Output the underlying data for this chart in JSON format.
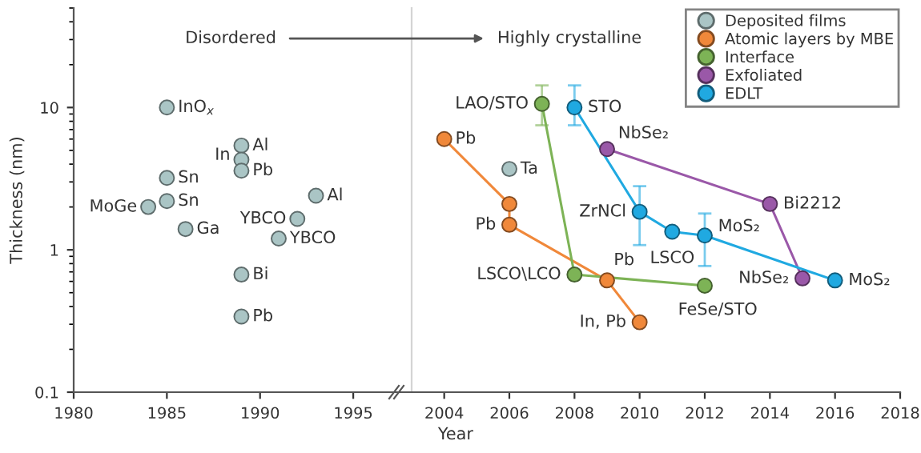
{
  "chart_data": [
    {
      "type": "scatter",
      "ylabel": "Thickness (nm)",
      "log": "y",
      "xlim": [
        1980,
        1996.5
      ],
      "xticks": [
        1980,
        1985,
        1990,
        1995
      ],
      "ylim": [
        0.1,
        50
      ],
      "yticks": [
        0.1,
        1,
        10
      ],
      "marker": "circle",
      "grid": false,
      "legend": false,
      "annotations": [
        {
          "text": "InO$_{x}$",
          "x": 1985,
          "y": 10
        },
        {
          "text": "Al",
          "x": 1989,
          "y": 5.4
        },
        {
          "text": "In",
          "x": 1989,
          "y": 4.3
        },
        {
          "text": "Pb",
          "x": 1989,
          "y": 3.6
        },
        {
          "text": "Sn",
          "x": 1985,
          "y": 3.2
        },
        {
          "text": "Sn",
          "x": 1985,
          "y": 2.2
        },
        {
          "text": "MoGe",
          "x": 1984,
          "y": 2.0
        },
        {
          "text": "Ga",
          "x": 1986,
          "y": 1.4
        },
        {
          "text": "Al",
          "x": 1993,
          "y": 2.4
        },
        {
          "text": "YBCO",
          "x": 1992,
          "y": 1.65
        },
        {
          "text": "YBCO",
          "x": 1991,
          "y": 1.2
        },
        {
          "text": "Bi",
          "x": 1989,
          "y": 0.67
        },
        {
          "text": "Pb",
          "x": 1989,
          "y": 0.34
        },
        "Disordered"
      ],
      "series": [
        {
          "color": "#aac5c5",
          "x": [
            1985,
            1989,
            1989,
            1989,
            1985,
            1985,
            1984,
            1986,
            1993,
            1992,
            1991,
            1989,
            1989
          ],
          "values": [
            10,
            5.4,
            4.3,
            3.6,
            3.2,
            2.2,
            2.0,
            1.4,
            2.4,
            1.65,
            1.2,
            0.67,
            0.34
          ]
        }
      ]
    },
    {
      "type": "scatter",
      "xlabel": "Year",
      "log": "y",
      "xlim": [
        2003,
        2018
      ],
      "xticks": [
        2004,
        2006,
        2008,
        2010,
        2012,
        2014,
        2016,
        2018
      ],
      "ylim": [
        0.1,
        50
      ],
      "yticks": [
        0.1,
        1,
        10
      ],
      "tick_labels": "x",
      "marker": "circle",
      "grid": false,
      "legend": "top right",
      "annotations": [
        {
          "text": "Ta",
          "x": 2006,
          "y": 3.7
        },
        {
          "text": "LAO/STO",
          "x": 2007,
          "y": 10.6
        },
        {
          "text": "STO",
          "x": 2008,
          "y": 10
        },
        {
          "text": "Pb",
          "x": 2004,
          "y": 6.0
        },
        {
          "text": "Pb",
          "x": 2006,
          "y": 1.5
        },
        {
          "text": "LSCO\\LCO",
          "x": 2008,
          "y": 0.67
        },
        {
          "text": "Pb",
          "x": 2009,
          "y": 0.61
        },
        {
          "text": "In, Pb",
          "x": 2010,
          "y": 0.31
        },
        {
          "text": "FeSe/STO",
          "x": 2012,
          "y": 0.56
        },
        {
          "text": "NbSe₂",
          "x": 2009,
          "y": 5.1
        },
        {
          "text": "ZrNCl",
          "x": 2010,
          "y": 1.85
        },
        {
          "text": "LSCO",
          "x": 2011,
          "y": 1.34
        },
        {
          "text": "MoS₂",
          "x": 2012,
          "y": 1.26
        },
        {
          "text": "Bi2212",
          "x": 2014,
          "y": 2.1
        },
        {
          "text": "NbSe₂",
          "x": 2015,
          "y": 0.63
        },
        {
          "text": "MoS₂",
          "x": 2016,
          "y": 0.61
        },
        "Highly crystalline"
      ],
      "series": [
        {
          "name": "Deposited films",
          "type": "scatter",
          "color": "#aac5c5",
          "x": [
            2006
          ],
          "values": [
            3.7
          ]
        },
        {
          "name": "Atomic layers by MBE",
          "type": "line",
          "color": "#f0883a",
          "x": [
            2004,
            2006,
            2006,
            2009,
            2010
          ],
          "values": [
            6.0,
            2.1,
            1.5,
            0.61,
            0.31
          ]
        },
        {
          "name": "Interface",
          "type": "line",
          "color": "#7db356",
          "x": [
            2007,
            2008,
            2012
          ],
          "values": [
            10.6,
            0.67,
            0.56
          ],
          "errors": [
            [
              7.5,
              14.3
            ],
            null,
            null
          ]
        },
        {
          "name": "Exfoliated",
          "type": "line",
          "color": "#9a58a8",
          "x": [
            2009,
            2014,
            2015
          ],
          "values": [
            5.1,
            2.1,
            0.63
          ]
        },
        {
          "name": "EDLT",
          "type": "line",
          "color": "#20a9e1",
          "x": [
            2008,
            2010,
            2011,
            2012,
            2016
          ],
          "values": [
            10,
            1.85,
            1.34,
            1.26,
            0.61
          ],
          "errors": [
            [
              7.5,
              14.3
            ],
            [
              1.08,
              2.8
            ],
            null,
            [
              0.77,
              1.8
            ],
            null
          ]
        }
      ]
    }
  ]
}
